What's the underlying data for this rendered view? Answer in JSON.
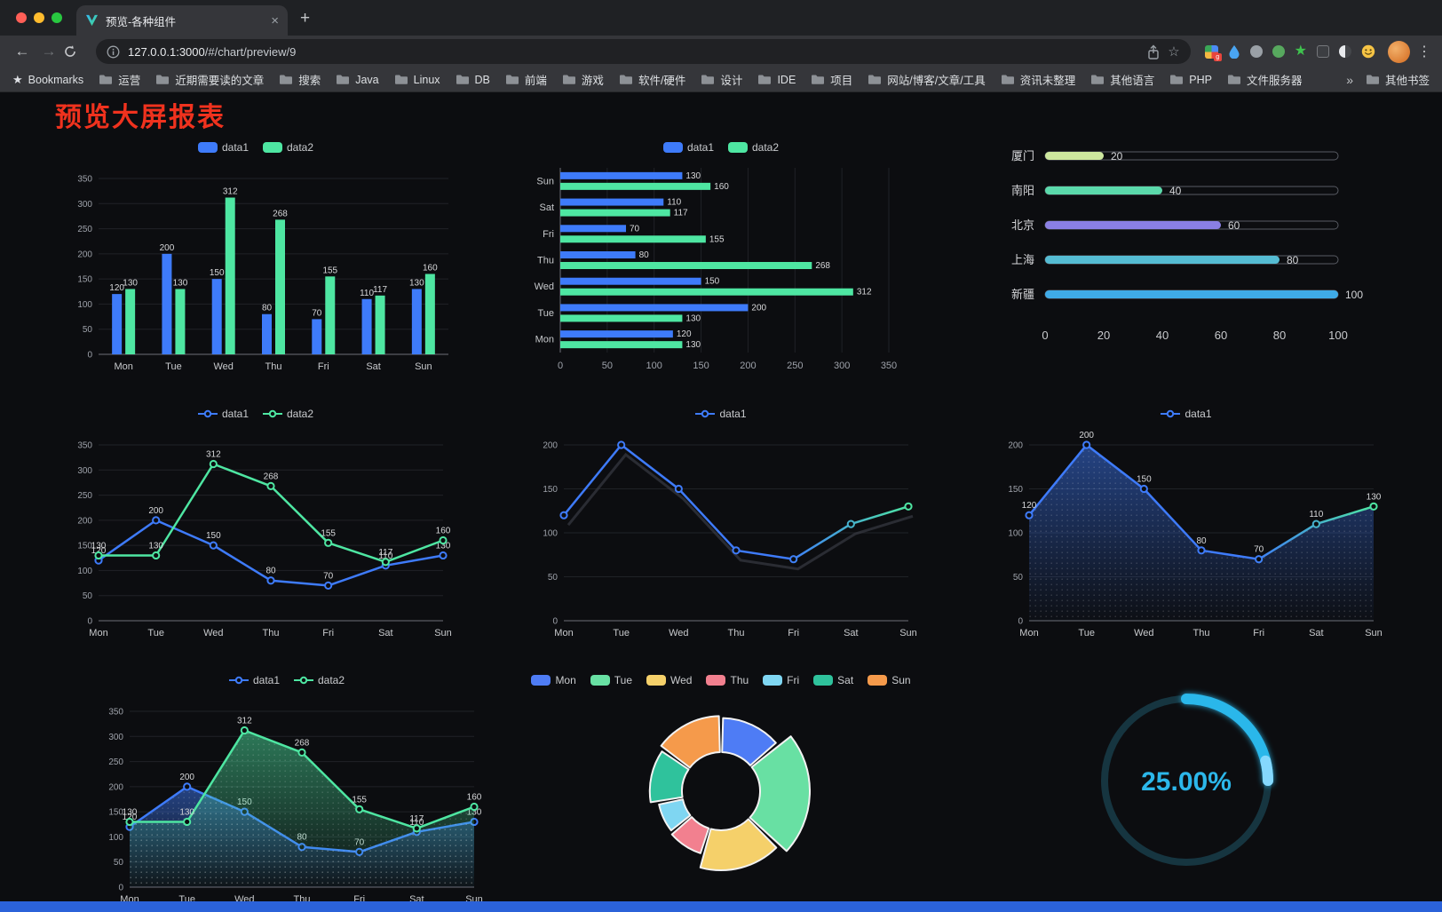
{
  "browser": {
    "tab": {
      "title": "预览-各种组件"
    },
    "address": {
      "host": "127.0.0.1:3000",
      "path": "/#/chart/preview/9"
    },
    "icons": {
      "back": "←",
      "forward": "→",
      "tab_close": "×",
      "new_tab": "+",
      "menu": "⋮",
      "bookmark_star": "★",
      "address_star": "☆",
      "overflow": "»"
    },
    "bookmarks": {
      "first_item": "Bookmarks",
      "folders": [
        "运营",
        "近期需要读的文章",
        "搜索",
        "Java",
        "Linux",
        "DB",
        "前端",
        "游戏",
        "软件/硬件",
        "设计",
        "IDE",
        "项目",
        "网站/博客/文章/工具",
        "资讯未整理",
        "其他语言",
        "PHP",
        "文件服务器"
      ],
      "other_bookmarks": "其他书签"
    }
  },
  "page": {
    "title": "预览大屏报表",
    "title_color": "#f0321e",
    "background": "#0c0d10",
    "bottom_strip_color": "#2b62d9"
  },
  "chart_data": [
    {
      "id": "grouped-bar",
      "type": "bar",
      "legend": {
        "type": "rect",
        "items": [
          "data1",
          "data2"
        ]
      },
      "categories": [
        "Mon",
        "Tue",
        "Wed",
        "Thu",
        "Fri",
        "Sat",
        "Sun"
      ],
      "series": [
        {
          "name": "data1",
          "color": "#3E7BFA",
          "values": [
            120,
            200,
            150,
            80,
            70,
            110,
            130
          ]
        },
        {
          "name": "data2",
          "color": "#4EE6A2",
          "values": [
            130,
            130,
            312,
            268,
            155,
            117,
            160
          ]
        }
      ],
      "ylim": [
        0,
        350
      ],
      "ytick": 50,
      "value_labels": true
    },
    {
      "id": "horizontal-bar",
      "type": "hbar",
      "legend": {
        "type": "rect",
        "items": [
          "data1",
          "data2"
        ]
      },
      "categories": [
        "Mon",
        "Tue",
        "Wed",
        "Thu",
        "Fri",
        "Sat",
        "Sun"
      ],
      "series": [
        {
          "name": "data1",
          "color": "#3E7BFA",
          "values": [
            120,
            200,
            150,
            80,
            70,
            110,
            130
          ]
        },
        {
          "name": "data2",
          "color": "#4EE6A2",
          "values": [
            130,
            130,
            312,
            268,
            155,
            117,
            160
          ]
        }
      ],
      "xlim": [
        0,
        350
      ],
      "xtick": 50,
      "value_labels": true
    },
    {
      "id": "capsule-progress",
      "type": "capsule",
      "max": 100,
      "xticks": [
        0,
        20,
        40,
        60,
        80,
        100
      ],
      "rows": [
        {
          "label": "厦门",
          "value": 20,
          "color": "#CDE79E"
        },
        {
          "label": "南阳",
          "value": 40,
          "color": "#5BD9AB"
        },
        {
          "label": "北京",
          "value": 60,
          "color": "#8A7FE3"
        },
        {
          "label": "上海",
          "value": 80,
          "color": "#55BCD3"
        },
        {
          "label": "新疆",
          "value": 100,
          "color": "#3FABE8"
        }
      ]
    },
    {
      "id": "multi-line",
      "type": "line",
      "legend": {
        "type": "line",
        "items": [
          "data1",
          "data2"
        ]
      },
      "categories": [
        "Mon",
        "Tue",
        "Wed",
        "Thu",
        "Fri",
        "Sat",
        "Sun"
      ],
      "series": [
        {
          "name": "data1",
          "color": "#3E7BFA",
          "values": [
            120,
            200,
            150,
            80,
            70,
            110,
            130
          ]
        },
        {
          "name": "data2",
          "color": "#4EE6A2",
          "values": [
            130,
            130,
            312,
            268,
            155,
            117,
            160
          ]
        }
      ],
      "ylim": [
        0,
        350
      ],
      "ytick": 50,
      "value_labels": true
    },
    {
      "id": "gradient-line",
      "type": "line",
      "legend": {
        "type": "line",
        "items": [
          "data1"
        ]
      },
      "categories": [
        "Mon",
        "Tue",
        "Wed",
        "Thu",
        "Fri",
        "Sat",
        "Sun"
      ],
      "series": [
        {
          "name": "data1",
          "color": "#3E7BFA",
          "gradient_to": "#4EE6A2",
          "values": [
            120,
            200,
            150,
            80,
            70,
            110,
            130
          ]
        }
      ],
      "ylim": [
        0,
        200
      ],
      "ytick": 50,
      "value_labels": false,
      "shadow": true
    },
    {
      "id": "area-line",
      "type": "line",
      "legend": {
        "type": "line",
        "items": [
          "data1"
        ]
      },
      "categories": [
        "Mon",
        "Tue",
        "Wed",
        "Thu",
        "Fri",
        "Sat",
        "Sun"
      ],
      "series": [
        {
          "name": "data1",
          "color": "#3E7BFA",
          "gradient_to": "#4EE6A2",
          "area": true,
          "values": [
            120,
            200,
            150,
            80,
            70,
            110,
            130
          ]
        }
      ],
      "ylim": [
        0,
        200
      ],
      "ytick": 50,
      "value_labels": true
    },
    {
      "id": "double-area-line",
      "type": "line",
      "legend": {
        "type": "line",
        "items": [
          "data1",
          "data2"
        ]
      },
      "categories": [
        "Mon",
        "Tue",
        "Wed",
        "Thu",
        "Fri",
        "Sat",
        "Sun"
      ],
      "series": [
        {
          "name": "data1",
          "color": "#3E7BFA",
          "area": true,
          "values": [
            120,
            200,
            150,
            80,
            70,
            110,
            130
          ]
        },
        {
          "name": "data2",
          "color": "#4EE6A2",
          "area": true,
          "values": [
            130,
            130,
            312,
            268,
            155,
            117,
            160
          ]
        }
      ],
      "ylim": [
        0,
        350
      ],
      "ytick": 50,
      "value_labels": true
    },
    {
      "id": "rose-pie",
      "type": "pie",
      "rose": true,
      "legend": {
        "type": "rect",
        "items": [
          "Mon",
          "Tue",
          "Wed",
          "Thu",
          "Fri",
          "Sat",
          "Sun"
        ]
      },
      "items": [
        {
          "name": "Mon",
          "value": 120,
          "color": "#4E7CF5"
        },
        {
          "name": "Tue",
          "value": 200,
          "color": "#68E0A3"
        },
        {
          "name": "Wed",
          "value": 150,
          "color": "#F5D06A"
        },
        {
          "name": "Thu",
          "value": 80,
          "color": "#F2808F"
        },
        {
          "name": "Fri",
          "value": 70,
          "color": "#7FD6F2"
        },
        {
          "name": "Sat",
          "value": 110,
          "color": "#2FC29C"
        },
        {
          "name": "Sun",
          "value": 130,
          "color": "#F59A4B"
        }
      ]
    },
    {
      "id": "gauge-progress",
      "type": "gauge",
      "value": 25,
      "max": 100,
      "label": "25.00%",
      "color": "#2CB7EA",
      "track_color": "#163540"
    }
  ]
}
